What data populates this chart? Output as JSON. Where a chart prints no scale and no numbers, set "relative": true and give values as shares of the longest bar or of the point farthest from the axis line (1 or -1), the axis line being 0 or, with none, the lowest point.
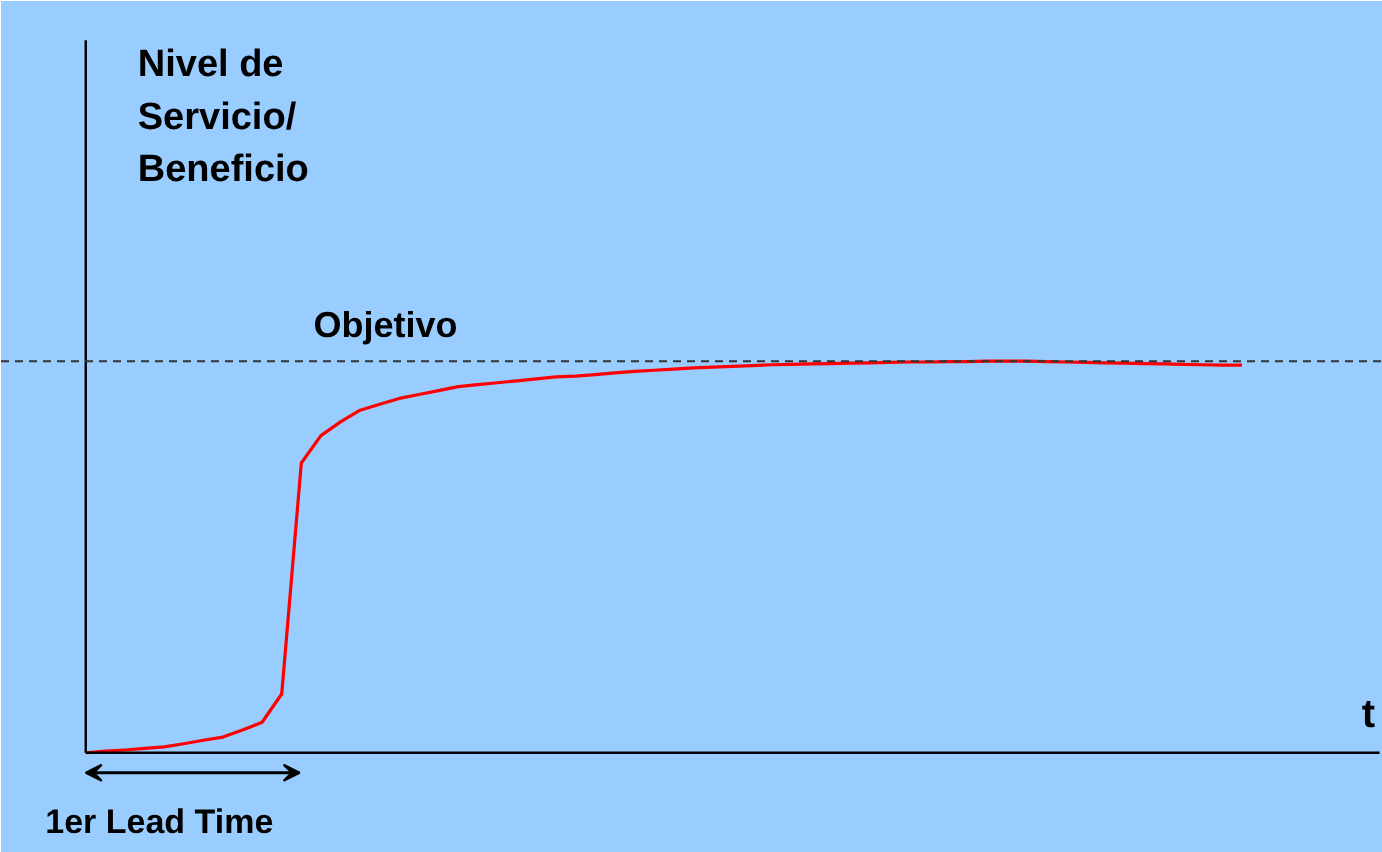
{
  "chart_data": {
    "type": "line",
    "relative": true,
    "ylabel": "Nivel de\nServicio/\nBeneficio",
    "xlabel": "t",
    "categories": [
      null,
      null,
      null,
      null,
      null,
      null,
      null,
      null,
      null,
      null,
      null,
      null,
      null,
      null,
      null,
      null,
      null,
      null,
      null,
      null,
      null,
      null,
      null,
      null,
      null,
      null,
      null,
      null,
      null,
      null,
      null,
      null,
      null,
      null,
      null,
      null,
      null,
      null,
      null,
      null,
      null,
      null,
      null,
      null,
      null,
      null,
      null,
      null,
      null,
      null,
      null,
      null,
      null,
      null,
      null,
      null,
      null,
      null,
      null,
      null
    ],
    "series": [
      {
        "color": "#ff0000",
        "values": [
          0,
          0.004,
          0.007,
          0.011,
          0.015,
          0.023,
          0.032,
          0.04,
          0.058,
          0.078,
          0.15,
          0.74,
          0.81,
          0.845,
          0.875,
          0.89,
          0.905,
          0.915,
          0.925,
          0.935,
          0.94,
          0.945,
          0.95,
          0.955,
          0.96,
          0.962,
          0.966,
          0.97,
          0.974,
          0.977,
          0.98,
          0.983,
          0.985,
          0.987,
          0.989,
          0.991,
          0.992,
          0.993,
          0.994,
          0.995,
          0.996,
          0.997,
          0.998,
          0.998,
          0.999,
          0.999,
          1,
          1,
          1,
          0.999,
          0.998,
          0.997,
          0.996,
          0.995,
          0.994,
          0.993,
          0.992,
          0.991,
          0.99,
          0.99
        ]
      }
    ],
    "ref_lines": [
      {
        "axis": "y",
        "value": 1,
        "label": "Objetivo",
        "color": "#333333",
        "line_style": "dashed"
      }
    ],
    "annotations": [
      "1er Lead Time"
    ],
    "grid": false,
    "marker": "none",
    "line_style": "solid"
  }
}
